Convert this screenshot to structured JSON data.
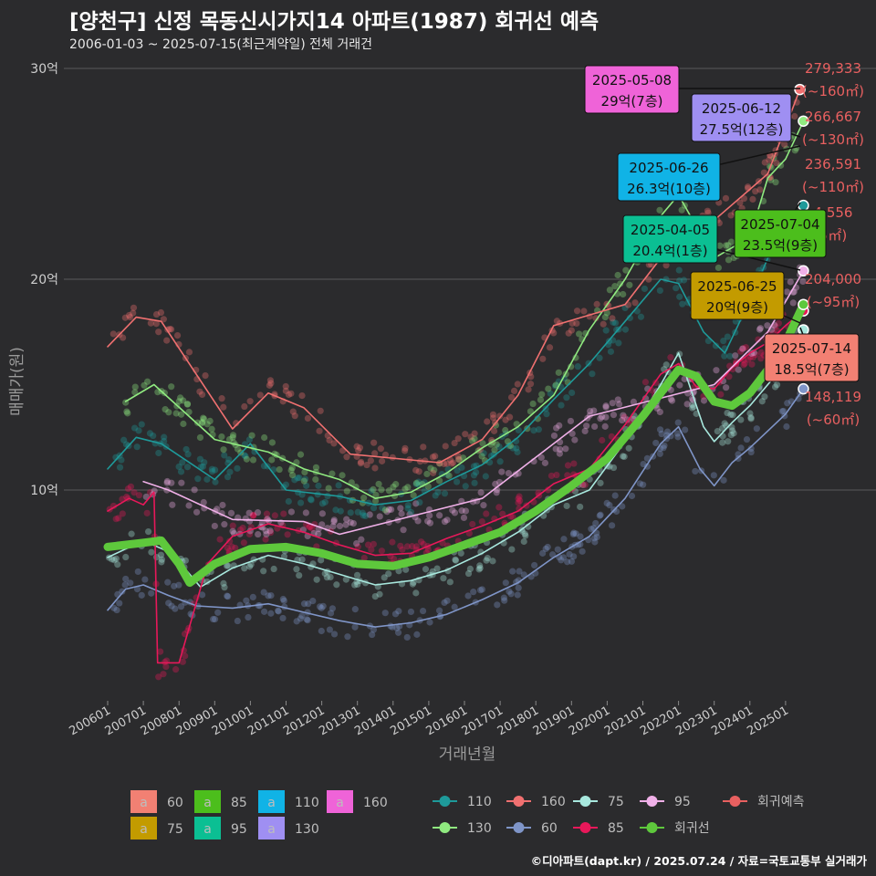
{
  "title": "[양천구] 신정 목동신시가지14 아파트(1987) 회귀선 예측",
  "subtitle": "2006-01-03 ~ 2025-07-15(최근계약일) 전체 거래건",
  "credit": "©디아파트(dapt.kr) / 2025.07.24 / 자료=국토교통부 실거래가",
  "chart_data": {
    "type": "scatter",
    "xlabel": "거래년월",
    "ylabel": "매매가(원)",
    "x_range": [
      "2006-01",
      "2025-07"
    ],
    "ylim": [
      0,
      30
    ],
    "y_ticks": [
      {
        "value": 10,
        "label": "10억"
      },
      {
        "value": 20,
        "label": "20억"
      },
      {
        "value": 30,
        "label": "30억"
      }
    ],
    "x_ticks": [
      "200601",
      "200701",
      "200801",
      "200901",
      "201001",
      "201101",
      "201201",
      "201301",
      "201401",
      "201501",
      "201601",
      "201701",
      "201801",
      "201901",
      "202001",
      "202101",
      "202201",
      "202301",
      "202401",
      "202501"
    ],
    "grid": true,
    "series": [
      {
        "name": "60",
        "color": "#7f95c8",
        "values": [
          [
            2006.0,
            4.3
          ],
          [
            2006.5,
            5.3
          ],
          [
            2007.0,
            5.5
          ],
          [
            2007.7,
            5.0
          ],
          [
            2008.5,
            4.5
          ],
          [
            2009.5,
            4.4
          ],
          [
            2010.5,
            4.6
          ],
          [
            2011.5,
            4.2
          ],
          [
            2012.5,
            3.8
          ],
          [
            2013.5,
            3.5
          ],
          [
            2014.5,
            3.7
          ],
          [
            2015.5,
            4.1
          ],
          [
            2016.5,
            4.8
          ],
          [
            2017.5,
            5.6
          ],
          [
            2018.5,
            6.8
          ],
          [
            2019.5,
            7.8
          ],
          [
            2020.5,
            9.6
          ],
          [
            2021.5,
            12.2
          ],
          [
            2022.0,
            13.0
          ],
          [
            2022.6,
            11.0
          ],
          [
            2023.0,
            10.2
          ],
          [
            2023.5,
            11.3
          ],
          [
            2024.0,
            12.0
          ],
          [
            2024.5,
            12.8
          ],
          [
            2025.0,
            13.6
          ],
          [
            2025.5,
            14.8
          ]
        ]
      },
      {
        "name": "75",
        "color": "#a8e8de",
        "values": [
          [
            2006.0,
            6.8
          ],
          [
            2007.0,
            7.6
          ],
          [
            2007.8,
            7.0
          ],
          [
            2008.6,
            5.4
          ],
          [
            2009.5,
            6.3
          ],
          [
            2010.5,
            6.9
          ],
          [
            2011.5,
            6.5
          ],
          [
            2012.5,
            6.0
          ],
          [
            2013.5,
            5.5
          ],
          [
            2014.5,
            5.7
          ],
          [
            2015.5,
            6.2
          ],
          [
            2016.5,
            7.0
          ],
          [
            2017.5,
            8.0
          ],
          [
            2018.5,
            9.3
          ],
          [
            2019.5,
            10.0
          ],
          [
            2020.5,
            12.3
          ],
          [
            2021.5,
            15.0
          ],
          [
            2022.0,
            16.5
          ],
          [
            2022.7,
            13.0
          ],
          [
            2023.0,
            12.3
          ],
          [
            2023.5,
            13.2
          ],
          [
            2024.0,
            14.0
          ],
          [
            2024.5,
            15.0
          ],
          [
            2025.0,
            16.0
          ],
          [
            2025.5,
            17.6
          ]
        ]
      },
      {
        "name": "85",
        "color": "#e8185a",
        "values": [
          [
            2006.0,
            9.0
          ],
          [
            2006.6,
            9.6
          ],
          [
            2007.0,
            9.3
          ],
          [
            2007.3,
            9.9
          ],
          [
            2007.4,
            1.8
          ],
          [
            2008.0,
            1.8
          ],
          [
            2008.8,
            6.5
          ],
          [
            2009.5,
            7.8
          ],
          [
            2010.5,
            8.4
          ],
          [
            2011.5,
            8.0
          ],
          [
            2012.5,
            7.4
          ],
          [
            2013.5,
            6.9
          ],
          [
            2014.5,
            7.0
          ],
          [
            2015.5,
            7.7
          ],
          [
            2016.5,
            8.3
          ],
          [
            2017.5,
            9.0
          ],
          [
            2018.5,
            10.3
          ],
          [
            2019.5,
            11.0
          ],
          [
            2020.5,
            13.1
          ],
          [
            2021.5,
            15.5
          ],
          [
            2022.0,
            16.0
          ],
          [
            2022.5,
            14.9
          ],
          [
            2023.0,
            14.8
          ],
          [
            2023.5,
            15.8
          ],
          [
            2024.0,
            16.5
          ],
          [
            2024.5,
            17.0
          ],
          [
            2025.0,
            17.8
          ],
          [
            2025.5,
            18.5
          ]
        ]
      },
      {
        "name": "95",
        "color": "#f0b0e8",
        "values": [
          [
            2007.0,
            10.4
          ],
          [
            2007.7,
            10.0
          ],
          [
            2009.5,
            8.6
          ],
          [
            2011.5,
            8.5
          ],
          [
            2012.5,
            7.9
          ],
          [
            2016.5,
            9.6
          ],
          [
            2019.5,
            13.5
          ],
          [
            2023.0,
            15.0
          ],
          [
            2024.5,
            17.5
          ],
          [
            2025.5,
            20.4
          ]
        ]
      },
      {
        "name": "110",
        "color": "#1e9a9a",
        "values": [
          [
            2006.0,
            11.0
          ],
          [
            2006.8,
            12.5
          ],
          [
            2007.5,
            12.2
          ],
          [
            2009.0,
            10.5
          ],
          [
            2010.0,
            12.2
          ],
          [
            2011.0,
            10.0
          ],
          [
            2012.5,
            9.7
          ],
          [
            2013.5,
            9.3
          ],
          [
            2014.5,
            9.5
          ],
          [
            2015.5,
            10.4
          ],
          [
            2016.5,
            11.2
          ],
          [
            2017.5,
            12.5
          ],
          [
            2018.5,
            14.3
          ],
          [
            2019.5,
            16.0
          ],
          [
            2020.5,
            18.0
          ],
          [
            2021.5,
            20.0
          ],
          [
            2022.0,
            19.8
          ],
          [
            2022.7,
            17.5
          ],
          [
            2023.3,
            16.5
          ],
          [
            2024.0,
            19.0
          ],
          [
            2024.5,
            21.0
          ],
          [
            2025.0,
            22.5
          ],
          [
            2025.5,
            23.5
          ]
        ]
      },
      {
        "name": "130",
        "color": "#90ea80",
        "values": [
          [
            2006.5,
            14.2
          ],
          [
            2007.3,
            15.0
          ],
          [
            2009.0,
            12.4
          ],
          [
            2010.5,
            11.8
          ],
          [
            2011.5,
            11.0
          ],
          [
            2012.5,
            10.5
          ],
          [
            2013.5,
            9.6
          ],
          [
            2014.5,
            9.9
          ],
          [
            2015.5,
            10.8
          ],
          [
            2016.5,
            12.0
          ],
          [
            2017.5,
            13.0
          ],
          [
            2018.5,
            14.5
          ],
          [
            2019.5,
            17.6
          ],
          [
            2020.5,
            20.0
          ],
          [
            2021.5,
            23.0
          ],
          [
            2022.0,
            24.0
          ],
          [
            2023.0,
            21.0
          ],
          [
            2024.0,
            22.0
          ],
          [
            2024.5,
            24.8
          ],
          [
            2025.0,
            25.7
          ],
          [
            2025.5,
            27.5
          ]
        ]
      },
      {
        "name": "160",
        "color": "#f07070",
        "values": [
          [
            2006.0,
            16.8
          ],
          [
            2006.8,
            18.2
          ],
          [
            2007.5,
            18.0
          ],
          [
            2009.5,
            12.9
          ],
          [
            2010.5,
            14.6
          ],
          [
            2011.5,
            13.9
          ],
          [
            2012.8,
            11.7
          ],
          [
            2015.3,
            11.3
          ],
          [
            2016.5,
            12.4
          ],
          [
            2017.5,
            14.5
          ],
          [
            2018.5,
            17.8
          ],
          [
            2020.5,
            18.8
          ],
          [
            2021.5,
            21.0
          ],
          [
            2023.0,
            22.8
          ],
          [
            2024.5,
            25.0
          ],
          [
            2025.4,
            29.0
          ]
        ]
      },
      {
        "name": "회귀선",
        "color": "#5ec83c",
        "values": [
          [
            2006.0,
            7.3
          ],
          [
            2007.0,
            7.5
          ],
          [
            2007.5,
            7.6
          ],
          [
            2008.0,
            6.5
          ],
          [
            2008.3,
            5.6
          ],
          [
            2009.0,
            6.5
          ],
          [
            2010.0,
            7.2
          ],
          [
            2011.0,
            7.3
          ],
          [
            2012.0,
            7.0
          ],
          [
            2013.0,
            6.5
          ],
          [
            2014.0,
            6.4
          ],
          [
            2015.0,
            6.8
          ],
          [
            2016.0,
            7.4
          ],
          [
            2017.0,
            8.0
          ],
          [
            2018.0,
            9.0
          ],
          [
            2019.0,
            10.2
          ],
          [
            2020.0,
            11.5
          ],
          [
            2021.0,
            13.5
          ],
          [
            2022.0,
            15.7
          ],
          [
            2022.5,
            15.4
          ],
          [
            2023.0,
            14.2
          ],
          [
            2023.5,
            14.0
          ],
          [
            2024.0,
            14.6
          ],
          [
            2024.5,
            15.7
          ],
          [
            2025.0,
            17.0
          ],
          [
            2025.5,
            18.8
          ]
        ]
      }
    ],
    "legend_label_boxes": [
      {
        "label": "60",
        "color": "#f28073"
      },
      {
        "label": "75",
        "color": "#c39b00"
      },
      {
        "label": "85",
        "color": "#4cbe1c"
      },
      {
        "label": "95",
        "color": "#0bbf93"
      },
      {
        "label": "110",
        "color": "#10b3e6"
      },
      {
        "label": "130",
        "color": "#9f8ff2"
      },
      {
        "label": "160",
        "color": "#ef63d8"
      }
    ],
    "legend_lines": [
      {
        "label": "110",
        "color": "#1e9a9a"
      },
      {
        "label": "130",
        "color": "#90ea80"
      },
      {
        "label": "160",
        "color": "#f07070"
      },
      {
        "label": "60",
        "color": "#7f95c8"
      },
      {
        "label": "75",
        "color": "#a8e8de"
      },
      {
        "label": "85",
        "color": "#e8185a"
      },
      {
        "label": "95",
        "color": "#f0b0e8"
      },
      {
        "label": "회귀선",
        "color": "#5ec83c"
      },
      {
        "label": "회귀예측",
        "color": "#e86060"
      }
    ],
    "callouts": [
      {
        "date": "2025-05-08",
        "price": "29억(7층)",
        "color": "#ef63d8",
        "value": 29.0
      },
      {
        "date": "2025-06-12",
        "price": "27.5억(12층)",
        "color": "#9f8ff2",
        "value": 27.5
      },
      {
        "date": "2025-06-26",
        "price": "26.3억(10층)",
        "color": "#10b3e6",
        "value": 26.3
      },
      {
        "date": "2025-04-05",
        "price": "20.4억(1층)",
        "color": "#0bbf93",
        "value": 20.4
      },
      {
        "date": "2025-07-04",
        "price": "23.5억(9층)",
        "color": "#4cbe1c",
        "value": 23.5
      },
      {
        "date": "2025-06-25",
        "price": "20억(9층)",
        "color": "#c39b00",
        "value": 20.0
      },
      {
        "date": "2025-07-14",
        "price": "18.5억(7층)",
        "color": "#f28073",
        "value": 18.5
      }
    ],
    "side_labels": [
      {
        "value": "279,333",
        "area": "(~160㎡)"
      },
      {
        "value": "266,667",
        "area": "(~130㎡)"
      },
      {
        "value": "236,591",
        "area": "(~110㎡)"
      },
      {
        "value": "4,556",
        "area": "5㎡)"
      },
      {
        "value": "204,000",
        "area": "(~95㎡)"
      },
      {
        "value": "148,119",
        "area": "(~60㎡)"
      }
    ]
  }
}
